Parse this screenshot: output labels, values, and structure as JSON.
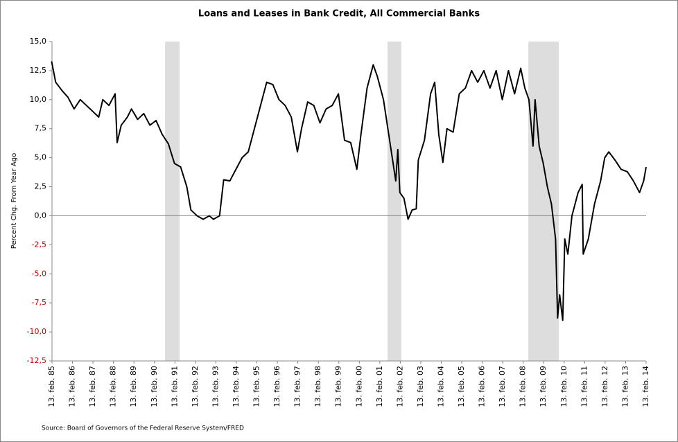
{
  "chart_data": {
    "type": "line",
    "title": "Loans and Leases in Bank Credit, All Commercial Banks",
    "y_label": "Percent Chg. From Year Ago",
    "source": "Source: Board of Governors of the Federal Reserve System/FRED",
    "series": [
      {
        "name": "Loans and Leases in Bank Credit",
        "color": "#000000",
        "x": [
          1985.1,
          1985.3,
          1985.6,
          1985.9,
          1986.2,
          1986.5,
          1986.8,
          1987.1,
          1987.4,
          1987.6,
          1987.9,
          1988.2,
          1988.3,
          1988.5,
          1988.8,
          1989.0,
          1989.3,
          1989.6,
          1989.9,
          1990.2,
          1990.5,
          1990.8,
          1991.1,
          1991.4,
          1991.7,
          1991.9,
          1992.2,
          1992.5,
          1992.8,
          1993.0,
          1993.3,
          1993.5,
          1993.8,
          1994.1,
          1994.4,
          1994.7,
          1995.0,
          1995.3,
          1995.6,
          1995.9,
          1996.2,
          1996.5,
          1996.8,
          1997.1,
          1997.3,
          1997.6,
          1997.9,
          1998.2,
          1998.5,
          1998.8,
          1999.1,
          1999.4,
          1999.7,
          2000.0,
          2000.2,
          2000.5,
          2000.8,
          2001.0,
          2001.3,
          2001.6,
          2001.9,
          2002.0,
          2002.1,
          2002.3,
          2002.5,
          2002.7,
          2002.9,
          2003.0,
          2003.3,
          2003.6,
          2003.8,
          2004.0,
          2004.2,
          2004.4,
          2004.7,
          2005.0,
          2005.3,
          2005.6,
          2005.9,
          2006.2,
          2006.5,
          2006.8,
          2007.1,
          2007.4,
          2007.7,
          2008.0,
          2008.2,
          2008.4,
          2008.6,
          2008.7,
          2008.9,
          2009.1,
          2009.3,
          2009.5,
          2009.7,
          2009.8,
          2009.9,
          2010.05,
          2010.15,
          2010.3,
          2010.5,
          2010.8,
          2011.0,
          2011.05,
          2011.3,
          2011.6,
          2011.9,
          2012.1,
          2012.3,
          2012.6,
          2012.9,
          2013.2,
          2013.5,
          2013.8,
          2014.0,
          2014.12
        ],
        "values": [
          13.3,
          11.5,
          10.8,
          10.2,
          9.2,
          10.0,
          9.5,
          9.0,
          8.5,
          10.0,
          9.5,
          10.5,
          6.3,
          7.8,
          8.5,
          9.2,
          8.3,
          8.8,
          7.8,
          8.2,
          7.0,
          6.2,
          4.5,
          4.2,
          2.5,
          0.5,
          0.0,
          -0.3,
          0.0,
          -0.3,
          0.0,
          3.1,
          3.0,
          4.0,
          5.0,
          5.5,
          7.5,
          9.5,
          11.5,
          11.3,
          10.0,
          9.5,
          8.5,
          5.5,
          7.5,
          9.8,
          9.5,
          8.0,
          9.2,
          9.5,
          10.5,
          6.5,
          6.3,
          4.0,
          7.0,
          11.0,
          13.0,
          12.0,
          10.0,
          6.5,
          3.0,
          5.7,
          2.0,
          1.5,
          -0.3,
          0.5,
          0.6,
          4.8,
          6.5,
          10.5,
          11.5,
          7.0,
          4.6,
          7.5,
          7.2,
          10.5,
          11.0,
          12.5,
          11.5,
          12.5,
          11.0,
          12.5,
          10.0,
          12.5,
          10.5,
          12.7,
          11.0,
          10.0,
          6.0,
          10.0,
          6.0,
          4.5,
          2.5,
          1.0,
          -2.0,
          -8.8,
          -6.8,
          -9.0,
          -2.0,
          -3.3,
          0.0,
          2.0,
          2.7,
          -3.3,
          -2.0,
          1.0,
          3.0,
          5.0,
          5.5,
          4.8,
          4.0,
          3.8,
          3.0,
          2.0,
          3.0,
          4.2
        ]
      }
    ],
    "recessions": [
      [
        1990.64,
        1991.35
      ],
      [
        2001.5,
        2002.17
      ],
      [
        2008.37,
        2009.86
      ]
    ],
    "recession_color": "#dddddd",
    "negative_tick_color": "#c00000",
    "xlim": [
      1985.12,
      2014.12
    ],
    "xticks": [
      {
        "value": 1985.12,
        "label": "13. feb. 85"
      },
      {
        "value": 1986.12,
        "label": "13. feb. 86"
      },
      {
        "value": 1987.12,
        "label": "13. feb. 87"
      },
      {
        "value": 1988.12,
        "label": "13. feb. 88"
      },
      {
        "value": 1989.12,
        "label": "13. feb. 89"
      },
      {
        "value": 1990.12,
        "label": "13. feb. 90"
      },
      {
        "value": 1991.12,
        "label": "13. feb. 91"
      },
      {
        "value": 1992.12,
        "label": "13. feb. 92"
      },
      {
        "value": 1993.12,
        "label": "13. feb. 93"
      },
      {
        "value": 1994.12,
        "label": "13. feb. 94"
      },
      {
        "value": 1995.12,
        "label": "13. feb. 95"
      },
      {
        "value": 1996.12,
        "label": "13. feb. 96"
      },
      {
        "value": 1997.12,
        "label": "13. feb. 97"
      },
      {
        "value": 1998.12,
        "label": "13. feb. 98"
      },
      {
        "value": 1999.12,
        "label": "13. feb. 99"
      },
      {
        "value": 2000.12,
        "label": "13. feb. 00"
      },
      {
        "value": 2001.12,
        "label": "13. feb. 01"
      },
      {
        "value": 2002.12,
        "label": "13. feb. 02"
      },
      {
        "value": 2003.12,
        "label": "13. feb. 03"
      },
      {
        "value": 2004.12,
        "label": "13. feb. 04"
      },
      {
        "value": 2005.12,
        "label": "13. feb. 05"
      },
      {
        "value": 2006.12,
        "label": "13. feb. 06"
      },
      {
        "value": 2007.12,
        "label": "13. feb. 07"
      },
      {
        "value": 2008.12,
        "label": "13. feb. 08"
      },
      {
        "value": 2009.12,
        "label": "13. feb. 09"
      },
      {
        "value": 2010.12,
        "label": "13. feb. 10"
      },
      {
        "value": 2011.12,
        "label": "13. feb. 11"
      },
      {
        "value": 2012.12,
        "label": "13. feb. 12"
      },
      {
        "value": 2013.12,
        "label": "13. feb. 13"
      },
      {
        "value": 2014.12,
        "label": "13. feb. 14"
      }
    ],
    "ylim": [
      -12.5,
      15
    ],
    "yticks": [
      {
        "value": -12.5,
        "label": "-12,5"
      },
      {
        "value": -10,
        "label": "-10,0"
      },
      {
        "value": -7.5,
        "label": "-7,5"
      },
      {
        "value": -5,
        "label": "-5,0"
      },
      {
        "value": -2.5,
        "label": "-2,5"
      },
      {
        "value": 0,
        "label": "0,0"
      },
      {
        "value": 2.5,
        "label": "2,5"
      },
      {
        "value": 5,
        "label": "5,0"
      },
      {
        "value": 7.5,
        "label": "7,5"
      },
      {
        "value": 10,
        "label": "10,0"
      },
      {
        "value": 12.5,
        "label": "12,5"
      },
      {
        "value": 15,
        "label": "15,0"
      }
    ]
  }
}
